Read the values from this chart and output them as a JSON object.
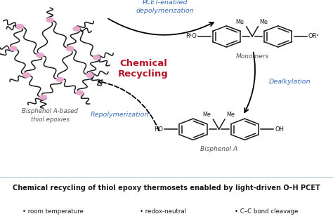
{
  "title": "Chemical recycling of thiol epoxy thermosets enabled by light-driven O–H PCET",
  "bullet_points": [
    "room temperature",
    "redox-neutral",
    "C–C bond cleavage"
  ],
  "center_label": "Chemical\nRecycling",
  "top_arrow_label": "PCET-enabled\ndepolymerization",
  "right_arrow_label": "Dealkylation",
  "bottom_arrow_label": "Repolymerization",
  "monomer_label": "Monomers",
  "bisphenolA_label": "Bisphenol A",
  "polymer_label": "Bisphenol A-based\nthiol epoxies",
  "bg_color": "#ffffff",
  "footer_bg": "#dce8f0",
  "center_label_color": "#b5152b",
  "arrow_label_color": "#3a6eb5",
  "title_color": "#1a1a1a",
  "polymer_node_color": "#e8a8cc",
  "polymer_line_color": "#1a1a1a",
  "structure_color": "#1a1a1a"
}
